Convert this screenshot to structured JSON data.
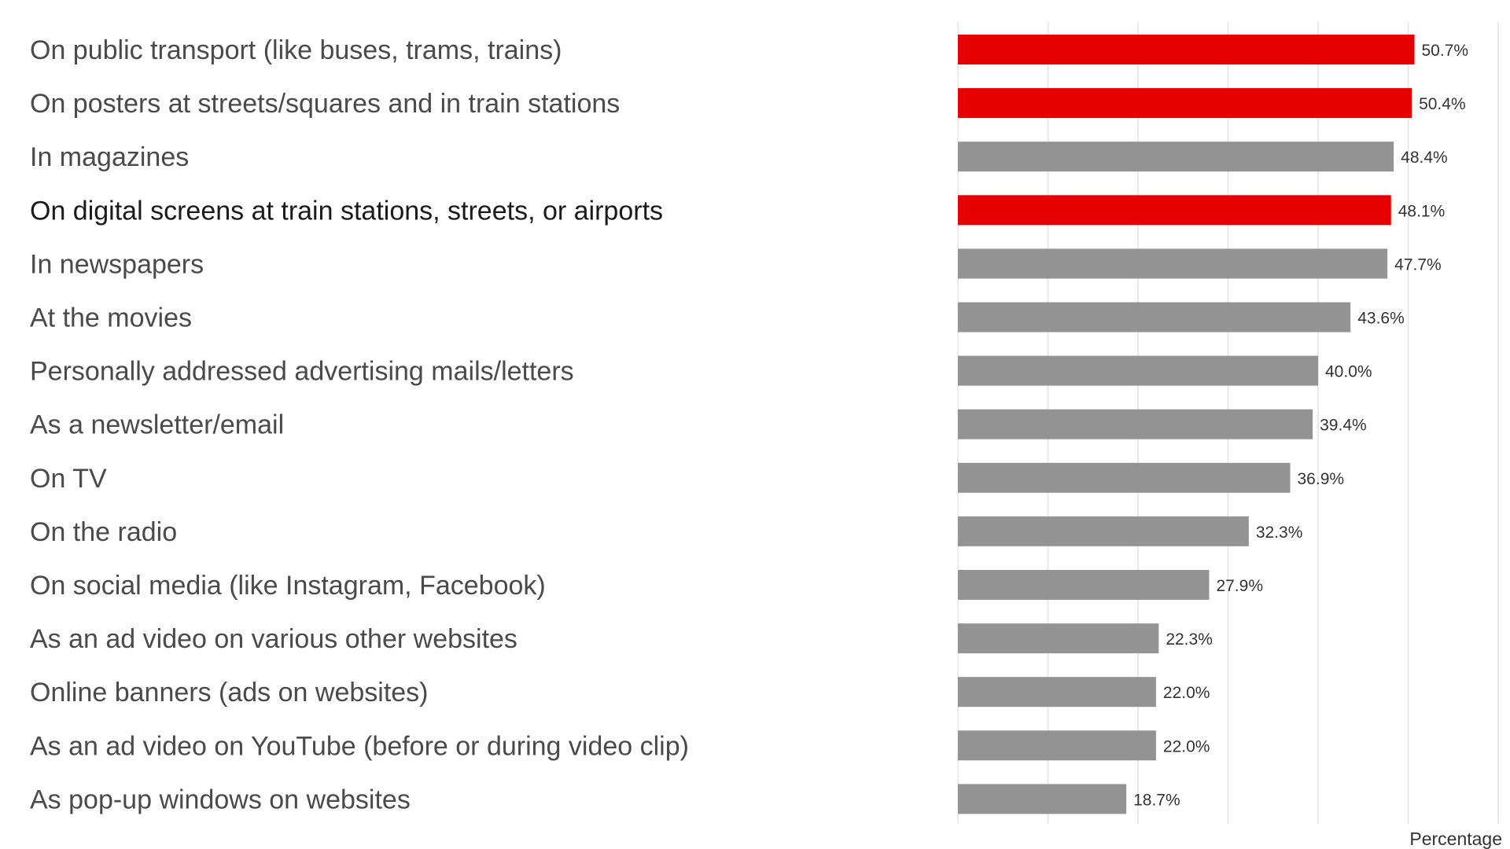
{
  "chart_data": {
    "type": "bar",
    "orientation": "horizontal",
    "xlabel": "Percentage",
    "ylabel": "",
    "xlim": [
      0,
      60
    ],
    "grid": "vertical",
    "value_suffix": "%",
    "highlight_color": "#e60000",
    "base_color": "#939393",
    "categories": [
      "On public transport (like buses, trams, trains)",
      "On posters at streets/squares and in train stations",
      "In magazines",
      "On digital screens at train stations, streets, or airports",
      "In newspapers",
      "At the movies",
      "Personally addressed advertising mails/letters",
      "As a newsletter/email",
      "On TV",
      "On the radio",
      "On social media (like Instagram, Facebook)",
      "As an ad video on various other websites",
      "Online banners (ads on websites)",
      "As an ad video on YouTube (before or during video clip)",
      "As pop-up windows on websites"
    ],
    "values": [
      50.7,
      50.4,
      48.4,
      48.1,
      47.7,
      43.6,
      40.0,
      39.4,
      36.9,
      32.3,
      27.9,
      22.3,
      22.0,
      22.0,
      18.7
    ],
    "value_labels": [
      "50.7%",
      "50.4%",
      "48.4%",
      "48.1%",
      "47.7%",
      "43.6%",
      "40.0%",
      "39.4%",
      "36.9%",
      "32.3%",
      "27.9%",
      "22.3%",
      "22.0%",
      "22.0%",
      "18.7%"
    ],
    "highlighted": [
      true,
      true,
      false,
      true,
      false,
      false,
      false,
      false,
      false,
      false,
      false,
      false,
      false,
      false,
      false
    ]
  }
}
